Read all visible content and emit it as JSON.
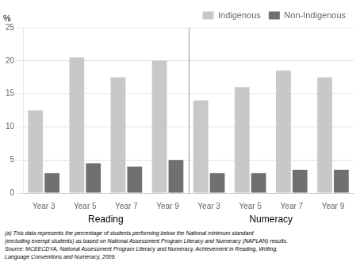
{
  "chart_data": {
    "type": "bar",
    "categories": [
      "Year 3",
      "Year 5",
      "Year 7",
      "Year 9",
      "Year 3",
      "Year 5",
      "Year 7",
      "Year 9"
    ],
    "group_labels": [
      "Reading",
      "Numeracy"
    ],
    "series": [
      {
        "name": "Indigenous",
        "color": "#c8c8c8",
        "values": [
          12.5,
          20.5,
          17.5,
          20.0,
          14.0,
          16.0,
          18.5,
          17.5
        ]
      },
      {
        "name": "Non-Indigenous",
        "color": "#707070",
        "values": [
          3.0,
          4.5,
          4.0,
          5.0,
          3.0,
          3.0,
          3.5,
          3.5
        ]
      }
    ],
    "ylabel": "%",
    "ylim": [
      0,
      25
    ],
    "yticks": [
      0,
      5,
      10,
      15,
      20,
      25
    ],
    "grid": true,
    "legend": "upper right",
    "annotations": [
      "(a) This data represents the percentage of students performing below the National minimum standard",
      "(excluding exempt students) as based on National Assessment Program Literacy and Numeracy (NAPLAN) results.",
      "Source: MCEECDYA, National Assessment Program Literacy and Numeracy, Achievement in Reading, Writing,",
      "    Language Conventions and Numeracy, 2009."
    ]
  }
}
